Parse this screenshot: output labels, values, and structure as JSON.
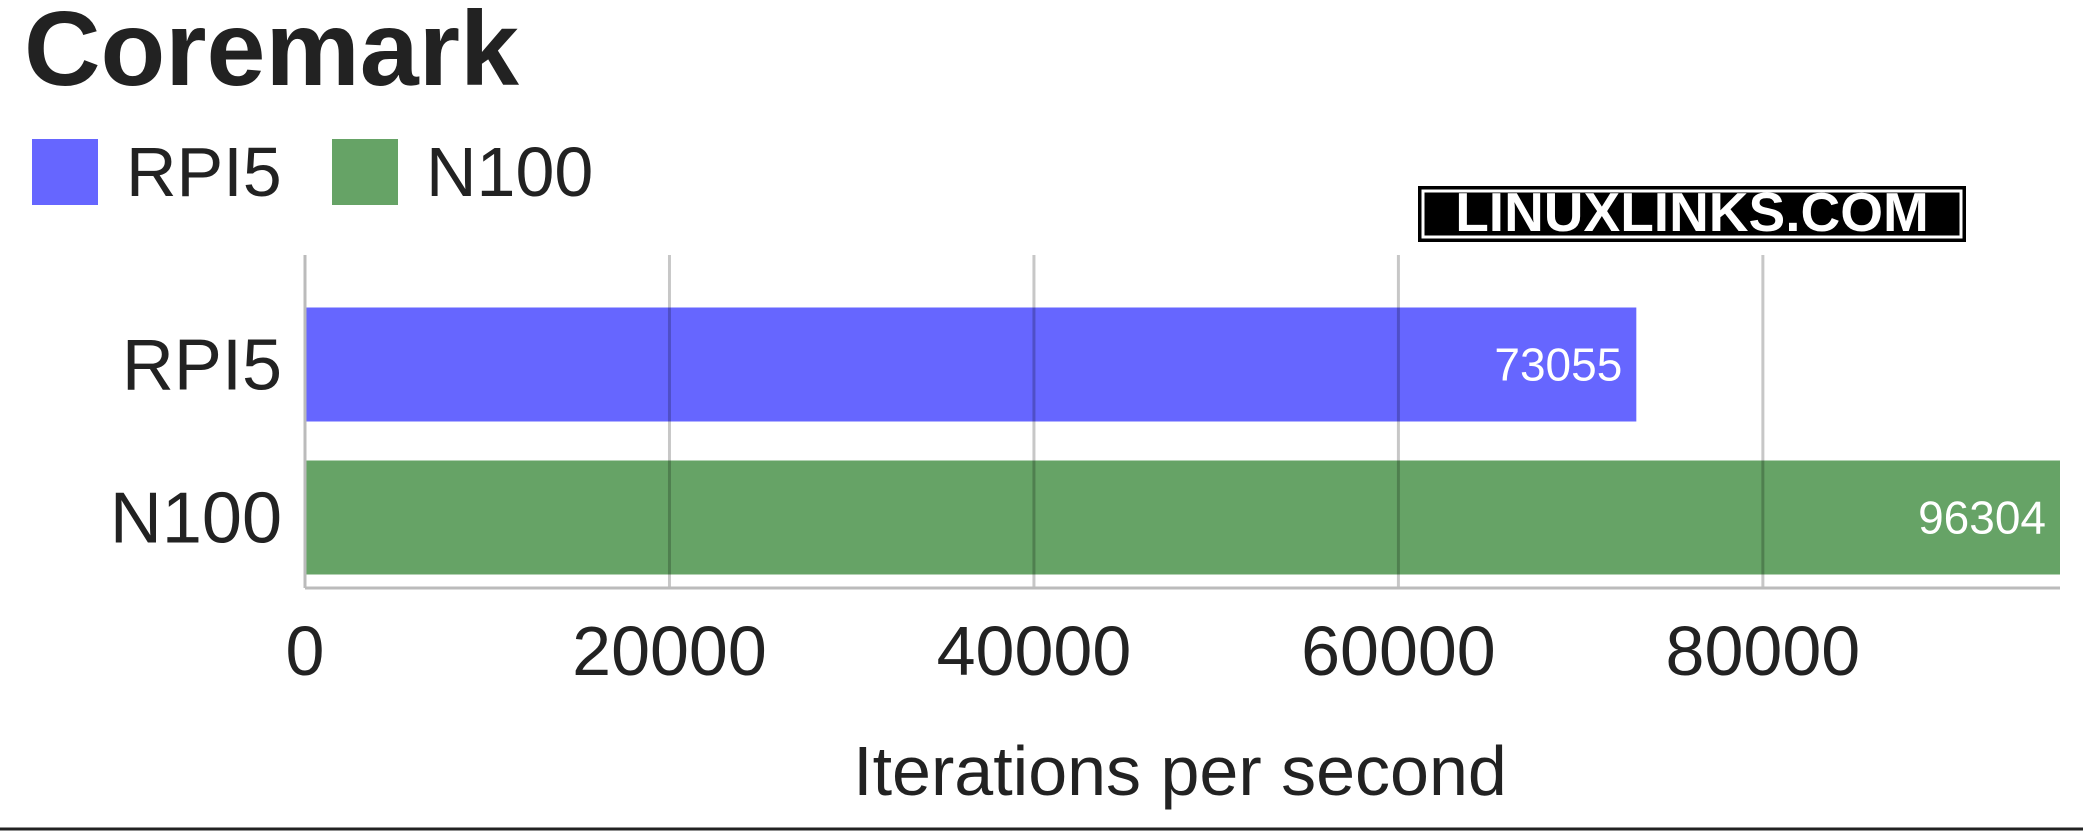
{
  "chart_data": {
    "type": "bar",
    "orientation": "horizontal",
    "title": "Coremark",
    "xlabel": "Iterations per second",
    "ylabel": "",
    "categories": [
      "RPI5",
      "N100"
    ],
    "values": [
      73055,
      96304
    ],
    "colors": [
      "#6666ff",
      "#66a366"
    ],
    "legend": {
      "position": "top-left",
      "entries": [
        {
          "label": "RPI5",
          "color": "#6666ff"
        },
        {
          "label": "N100",
          "color": "#66a366"
        }
      ]
    },
    "xlim": [
      0,
      96304
    ],
    "xticks": [
      0,
      20000,
      40000,
      60000,
      80000
    ],
    "xtick_labels": [
      "0",
      "20000",
      "40000",
      "60000",
      "80000"
    ],
    "grid": true,
    "data_labels": [
      "73055",
      "96304"
    ],
    "watermark": "LINUXLINKS.COM"
  }
}
